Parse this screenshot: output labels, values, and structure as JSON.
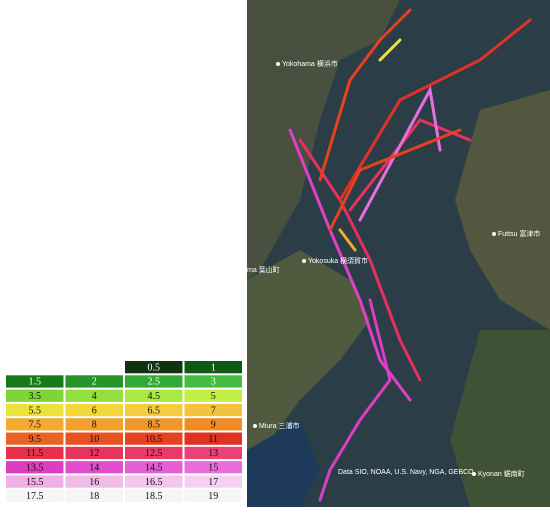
{
  "legend": {
    "rows": [
      [
        "0.5",
        "1"
      ],
      [
        "1.5",
        "2",
        "2.5",
        "3"
      ],
      [
        "3.5",
        "4",
        "4.5",
        "5"
      ],
      [
        "5.5",
        "6",
        "6.5",
        "7"
      ],
      [
        "7.5",
        "8",
        "8.5",
        "9"
      ],
      [
        "9.5",
        "10",
        "10.5",
        "11"
      ],
      [
        "11.5",
        "12",
        "12.5",
        "13"
      ],
      [
        "13.5",
        "14",
        "14.5",
        "15"
      ],
      [
        "15.5",
        "16",
        "16.5",
        "17"
      ],
      [
        "17.5",
        "18",
        "18.5",
        "19"
      ]
    ],
    "colors": [
      [
        "#123312",
        "#0f5a12"
      ],
      [
        "#157a1a",
        "#25952a",
        "#34aa36",
        "#44bc40"
      ],
      [
        "#7dd53a",
        "#93df3e",
        "#abe842",
        "#c3ee46"
      ],
      [
        "#ece23e",
        "#f2d63a",
        "#f5cc3c",
        "#f5c23c"
      ],
      [
        "#f2aa32",
        "#f2a030",
        "#f0962c",
        "#ef8c26"
      ],
      [
        "#e86424",
        "#e65222",
        "#e54222",
        "#e03222"
      ],
      [
        "#e8304e",
        "#e8345c",
        "#e83a68",
        "#e84278"
      ],
      [
        "#dc3ec2",
        "#e04ecd",
        "#e45ed6",
        "#e86ede"
      ],
      [
        "#f0b0e6",
        "#f2bcea",
        "#f4c6ee",
        "#f6d0f2"
      ],
      [
        "#f5f5f5",
        "#f5f5f5",
        "#f5f5f5",
        "#f5f5f5"
      ]
    ]
  },
  "map": {
    "labels": [
      "Yokohama 横浜市",
      "Futtsu 富津市",
      "Yokosuka 横須賀市",
      "ma 葉山町",
      "Miura 三浦市",
      "Kyonan 鋸南町",
      "Data SIO, NOAA, U.S. Navy, NGA, GEBCO"
    ]
  }
}
